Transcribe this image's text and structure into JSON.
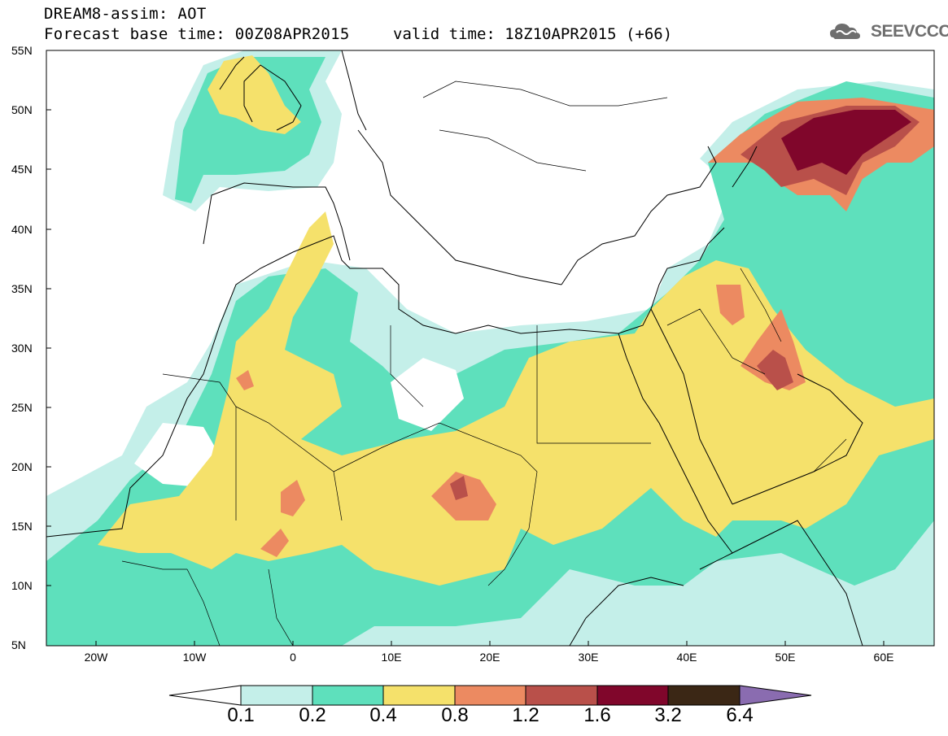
{
  "header": {
    "title": "DREAM8-assim: AOT",
    "base_time": "Forecast base time: 00Z08APR2015",
    "valid_time": "valid time: 18Z10APR2015 (+66)",
    "logo_text": "SEEVCCC"
  },
  "map": {
    "lat_labels": [
      "55N",
      "50N",
      "45N",
      "40N",
      "35N",
      "30N",
      "25N",
      "20N",
      "15N",
      "10N",
      "5N"
    ],
    "lon_labels": [
      "20W",
      "10W",
      "0",
      "10E",
      "20E",
      "30E",
      "40E",
      "50E",
      "60E"
    ],
    "extent": {
      "lon_min": -25,
      "lon_max": 65,
      "lat_min": 5,
      "lat_max": 55
    }
  },
  "colorbar": {
    "labels": [
      "0.1",
      "0.2",
      "0.4",
      "0.8",
      "1.2",
      "1.6",
      "3.2",
      "6.4"
    ],
    "colors": [
      "#ffffff",
      "#c4efe9",
      "#5ee0bc",
      "#f5e16b",
      "#ec8a61",
      "#b9504a",
      "#80062b",
      "#3b2715",
      "#8a6cb0"
    ]
  },
  "legend_colors": {
    "level_01": "#c4efe9",
    "level_02": "#5ee0bc",
    "level_04": "#f5e16b",
    "level_08": "#ec8a61",
    "level_12": "#b9504a",
    "level_16": "#80062b",
    "level_32": "#3b2715"
  }
}
